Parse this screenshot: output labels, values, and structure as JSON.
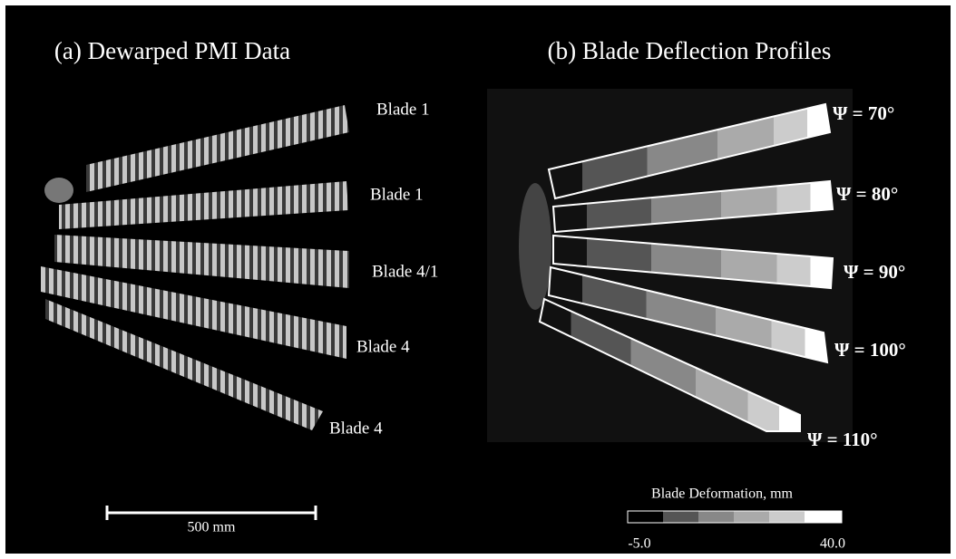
{
  "panels": [
    {
      "title": "(a) Dewarped PMI Data",
      "labels": [
        "Blade 1",
        "Blade 1",
        "Blade 4/1",
        "Blade 4",
        "Blade 4"
      ]
    },
    {
      "title": "(b) Blade Deflection Profiles",
      "labels": [
        "Ψ = 70°",
        "Ψ = 80°",
        "Ψ = 90°",
        "Ψ = 100°",
        "Ψ = 110°"
      ]
    }
  ],
  "scale_bar": {
    "label": "500 mm"
  },
  "colorbar": {
    "title": "Blade Deformation, mm",
    "min_label": "-5.0",
    "max_label": "40.0"
  }
}
